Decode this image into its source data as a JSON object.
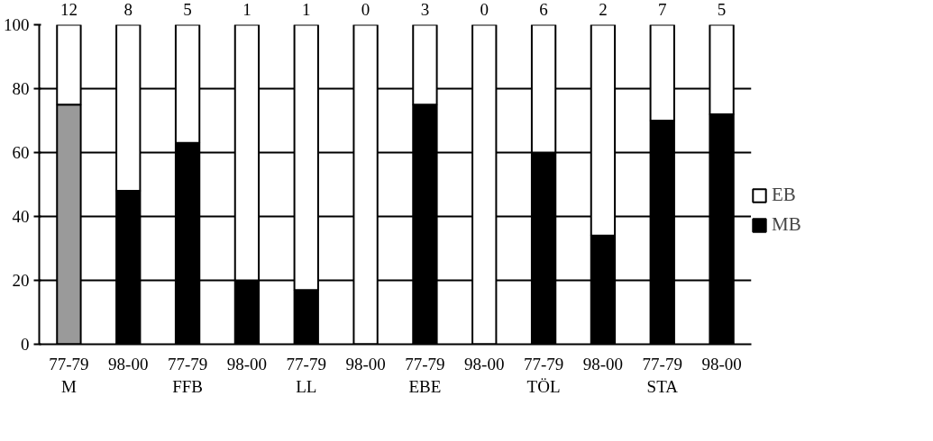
{
  "chart_data": {
    "type": "bar",
    "stacked": true,
    "categories": [
      "77-79\nM",
      "98-00",
      "77-79\nFFB",
      "98-00",
      "77-79\nLL",
      "98-00",
      "77-79\nEBE",
      "98-00",
      "77-79\nTÖL",
      "98-00",
      "77-79\nSTA",
      "98-00"
    ],
    "series": [
      {
        "name": "MB",
        "color": "#000000",
        "colors": [
          "#9a9a9a",
          "#000000",
          "#000000",
          "#000000",
          "#000000",
          "#000000",
          "#000000",
          "#000000",
          "#000000",
          "#000000",
          "#000000",
          "#000000"
        ],
        "values": [
          75,
          48,
          63,
          20,
          17,
          0,
          75,
          0,
          60,
          34,
          70,
          72
        ]
      },
      {
        "name": "EB",
        "color": "#ffffff",
        "values": [
          25,
          52,
          37,
          80,
          83,
          100,
          25,
          100,
          40,
          66,
          30,
          28
        ]
      }
    ],
    "annotations": [
      "12",
      "8",
      "5",
      "1",
      "1",
      "0",
      "3",
      "0",
      "6",
      "2",
      "7",
      "5"
    ],
    "ylim": [
      0,
      100
    ],
    "yticks": [
      0,
      20,
      40,
      60,
      80,
      100
    ],
    "grid": "y",
    "legend": "right"
  }
}
